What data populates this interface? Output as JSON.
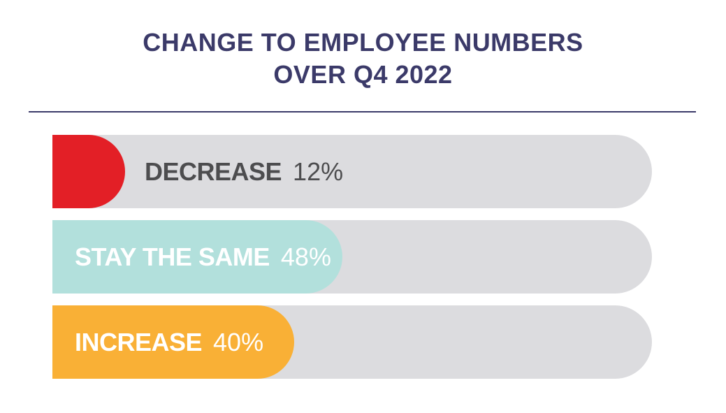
{
  "title": {
    "line1": "CHANGE TO EMPLOYEE NUMBERS",
    "line2": "OVER Q4 2022"
  },
  "colors": {
    "title": "#3b3a69",
    "track": "#dcdcdf",
    "decrease": "#e31f26",
    "stay_the_same": "#b2e0dc",
    "increase": "#f9b036",
    "dark_label": "#4d4d4f",
    "light_label": "#ffffff"
  },
  "chart_data": {
    "type": "bar",
    "orientation": "horizontal",
    "categories": [
      "DECREASE",
      "STAY THE SAME",
      "INCREASE"
    ],
    "values": [
      12,
      48,
      40
    ],
    "value_labels": [
      "12%",
      "48%",
      "40%"
    ],
    "unit": "%",
    "xlim": [
      0,
      100
    ],
    "title": "CHANGE TO EMPLOYEE NUMBERS OVER Q4 2022",
    "grid": false,
    "legend": "none"
  }
}
